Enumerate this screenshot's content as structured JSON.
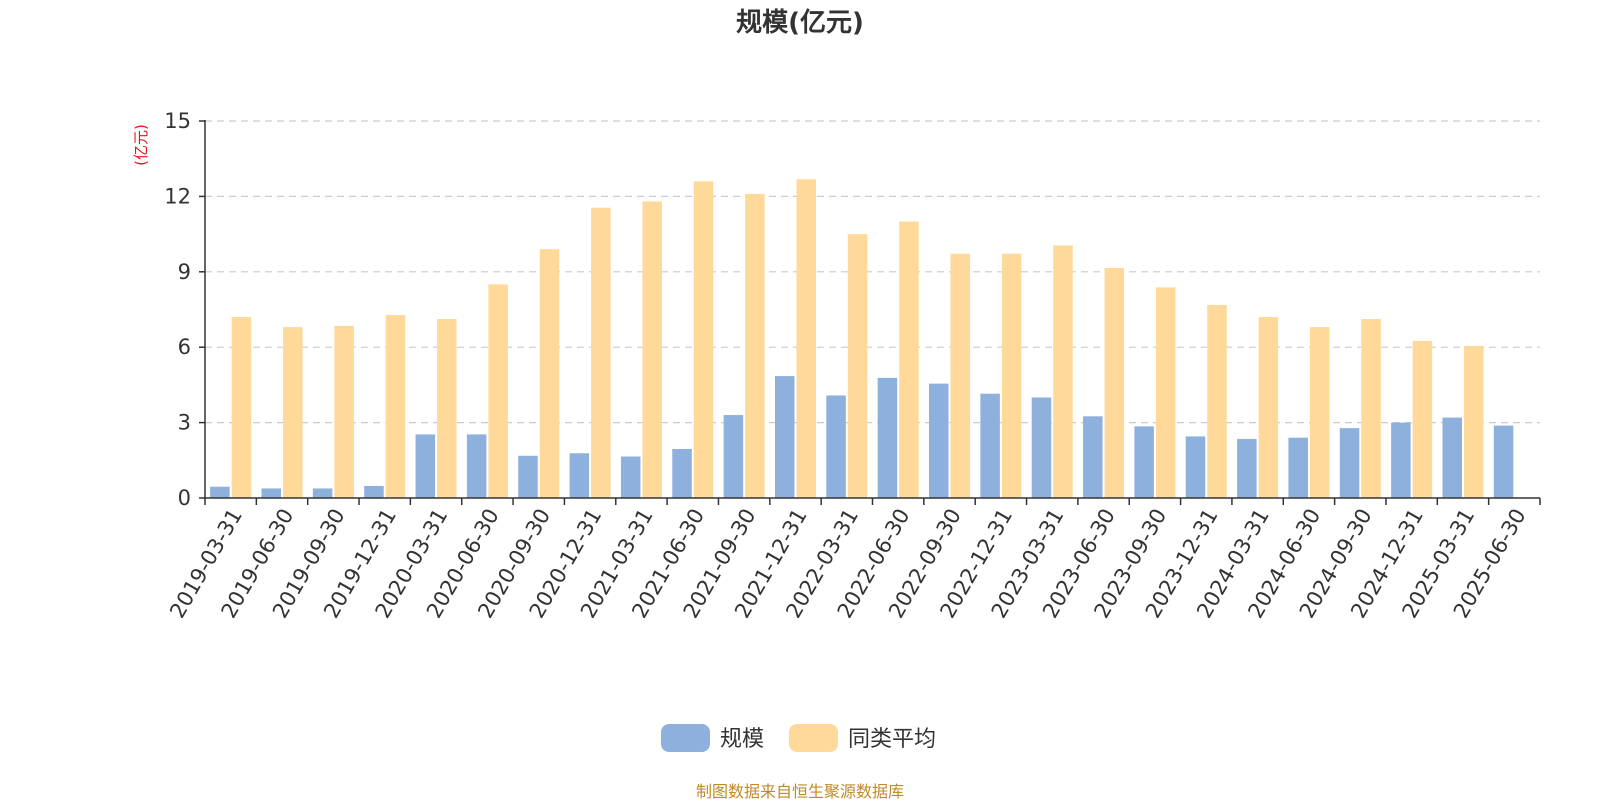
{
  "chart_data": {
    "type": "bar",
    "title": "规模(亿元)",
    "ylabel": "(亿元)",
    "xlabel": "",
    "ylim": [
      0,
      15
    ],
    "yticks": [
      0,
      3,
      6,
      9,
      12,
      15
    ],
    "grid": true,
    "legend_position": "bottom-center",
    "categories": [
      "2019-03-31",
      "2019-06-30",
      "2019-09-30",
      "2019-12-31",
      "2020-03-31",
      "2020-06-30",
      "2020-09-30",
      "2020-12-31",
      "2021-03-31",
      "2021-06-30",
      "2021-09-30",
      "2021-12-31",
      "2022-03-31",
      "2022-06-30",
      "2022-09-30",
      "2022-12-31",
      "2023-03-31",
      "2023-06-30",
      "2023-09-30",
      "2023-12-31",
      "2024-03-31",
      "2024-06-30",
      "2024-09-30",
      "2024-12-31",
      "2025-03-31",
      "2025-06-30"
    ],
    "series": [
      {
        "name": "规模",
        "color": "#8eb0dd",
        "values": [
          0.45,
          0.38,
          0.38,
          0.48,
          2.53,
          2.53,
          1.68,
          1.78,
          1.65,
          1.95,
          3.3,
          4.85,
          4.08,
          4.78,
          4.55,
          4.15,
          4.0,
          3.25,
          2.85,
          2.45,
          2.35,
          2.4,
          2.78,
          3.0,
          3.2,
          2.88
        ]
      },
      {
        "name": "同类平均",
        "color": "#ffd999",
        "values": [
          7.2,
          6.8,
          6.85,
          7.28,
          7.12,
          8.5,
          9.9,
          11.55,
          11.8,
          12.6,
          12.1,
          12.68,
          10.5,
          11.0,
          9.72,
          9.72,
          10.05,
          9.15,
          8.38,
          7.68,
          7.2,
          6.8,
          7.12,
          6.25,
          6.05,
          null
        ]
      }
    ]
  },
  "footer": {
    "source": "制图数据来自恒生聚源数据库"
  },
  "colors": {
    "unit_label": "#e8101a",
    "source_text": "#c08a2a"
  }
}
